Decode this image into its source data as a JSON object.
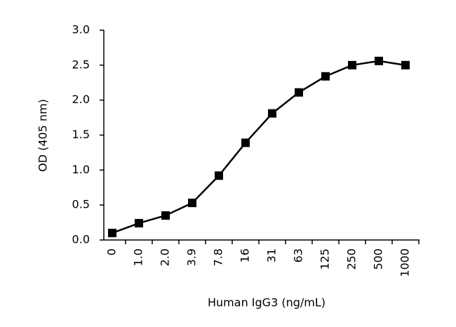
{
  "chart_data": {
    "type": "line",
    "x_label": "Human IgG3 (ng/mL)",
    "y_label": "OD (405 nm)",
    "categories": [
      "0",
      "1.0",
      "2.0",
      "3.9",
      "7.8",
      "16",
      "31",
      "63",
      "125",
      "250",
      "500",
      "1000"
    ],
    "values": [
      0.1,
      0.24,
      0.35,
      0.53,
      0.92,
      1.39,
      1.81,
      2.11,
      2.34,
      2.5,
      2.56,
      2.5
    ],
    "color": "#000000",
    "ylim": [
      0,
      3
    ],
    "yticks": [
      {
        "value": 0,
        "label": "0.0"
      },
      0.5,
      {
        "value": 1,
        "label": "1.0"
      },
      1.5,
      {
        "value": 2,
        "label": "2.0"
      },
      2.5,
      {
        "value": 3,
        "label": "3.0"
      }
    ],
    "grid": false
  }
}
